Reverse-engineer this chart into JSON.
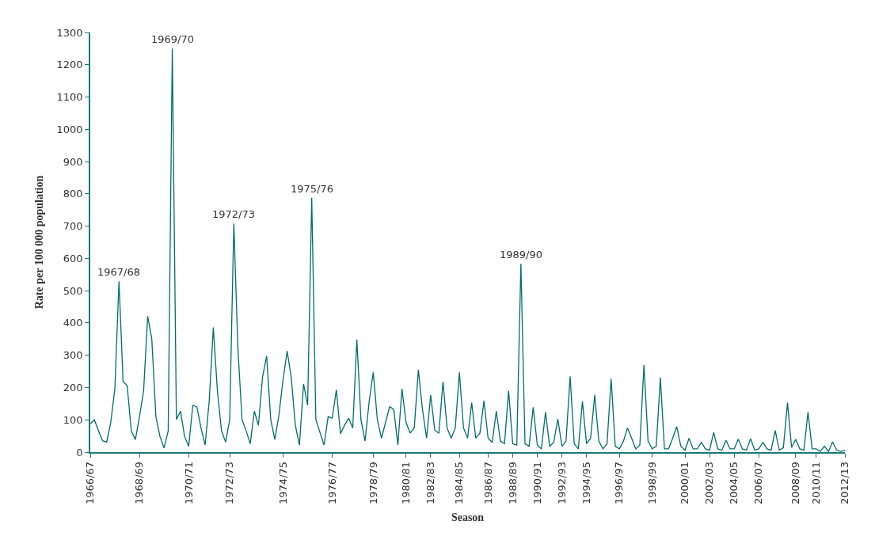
{
  "chart_data": {
    "type": "line",
    "xlabel": "Season",
    "ylabel": "Rate per 100 000 population",
    "annotations": [
      {
        "text": "1967/68",
        "y": 529
      },
      {
        "text": "1969/70",
        "y": 1250
      },
      {
        "text": "1972/73",
        "y": 708
      },
      {
        "text": "1975/76",
        "y": 788
      },
      {
        "text": "1989/90",
        "y": 584
      }
    ],
    "categories": [
      "1966/67",
      null,
      null,
      null,
      null,
      null,
      null,
      null,
      null,
      null,
      null,
      null,
      "1968/69",
      null,
      null,
      null,
      null,
      null,
      null,
      null,
      null,
      null,
      null,
      null,
      "1970/71",
      null,
      null,
      null,
      null,
      null,
      null,
      null,
      null,
      null,
      "1972/73",
      null,
      null,
      null,
      null,
      null,
      null,
      null,
      null,
      null,
      null,
      null,
      null,
      "1974/75",
      null,
      null,
      null,
      null,
      null,
      null,
      null,
      null,
      null,
      null,
      null,
      "1976/77",
      null,
      null,
      null,
      null,
      null,
      null,
      null,
      null,
      null,
      "1978/79",
      null,
      null,
      null,
      null,
      null,
      null,
      null,
      "1980/81",
      null,
      null,
      null,
      null,
      null,
      "1982/83",
      null,
      null,
      null,
      null,
      null,
      null,
      "1984/85",
      null,
      null,
      null,
      null,
      null,
      null,
      "1986/87",
      null,
      null,
      null,
      null,
      null,
      "1988/89",
      null,
      null,
      null,
      null,
      null,
      "1990/91",
      null,
      null,
      null,
      null,
      null,
      "1992/93",
      null,
      null,
      null,
      null,
      null,
      "1994/95",
      null,
      null,
      null,
      null,
      null,
      null,
      null,
      "1996/97",
      null,
      null,
      null,
      null,
      null,
      null,
      null,
      "1998/99",
      null,
      null,
      null,
      null,
      null,
      null,
      null,
      "2000/01",
      null,
      null,
      null,
      null,
      null,
      "2002/03",
      null,
      null,
      null,
      null,
      null,
      "2004/05",
      null,
      null,
      null,
      null,
      null,
      "2006/07",
      null,
      null,
      null,
      null,
      null,
      null,
      null,
      null,
      "2008/09",
      null,
      null,
      null,
      null,
      "2010/11",
      null,
      null,
      null,
      null,
      null,
      null,
      "2012/13"
    ],
    "series": [
      {
        "color": "#006d6b",
        "values": [
          88,
          100,
          66,
          35,
          31,
          92,
          197,
          529,
          219,
          206,
          66,
          39,
          110,
          189,
          421,
          351,
          110,
          48,
          13,
          66,
          1250,
          101,
          127,
          48,
          18,
          145,
          140,
          75,
          22,
          158,
          386,
          189,
          66,
          31,
          101,
          708,
          320,
          101,
          66,
          26,
          127,
          83,
          232,
          298,
          101,
          39,
          114,
          224,
          313,
          232,
          83,
          22,
          211,
          145,
          788,
          101,
          61,
          22,
          110,
          105,
          193,
          57,
          83,
          105,
          75,
          349,
          100,
          34,
          157,
          247,
          100,
          43,
          92,
          141,
          132,
          22,
          196,
          92,
          59,
          75,
          255,
          132,
          43,
          177,
          67,
          59,
          218,
          75,
          43,
          75,
          247,
          75,
          43,
          153,
          43,
          59,
          159,
          43,
          30,
          127,
          34,
          26,
          190,
          26,
          22,
          584,
          26,
          18,
          139,
          22,
          10,
          124,
          18,
          30,
          103,
          18,
          34,
          235,
          26,
          10,
          157,
          26,
          43,
          177,
          34,
          10,
          26,
          227,
          18,
          10,
          34,
          75,
          43,
          10,
          22,
          270,
          34,
          10,
          18,
          231,
          10,
          10,
          43,
          79,
          18,
          6,
          43,
          10,
          10,
          30,
          10,
          6,
          61,
          10,
          6,
          37,
          10,
          10,
          40,
          10,
          6,
          42,
          6,
          10,
          30,
          10,
          6,
          67,
          6,
          14,
          153,
          14,
          40,
          10,
          6,
          124,
          10,
          10,
          2,
          18,
          2,
          32,
          6,
          2,
          6
        ]
      }
    ],
    "ylim": [
      0,
      1300
    ],
    "yticks": [
      0,
      100,
      200,
      300,
      400,
      500,
      600,
      700,
      800,
      900,
      1000,
      1100,
      1200,
      1300
    ]
  }
}
